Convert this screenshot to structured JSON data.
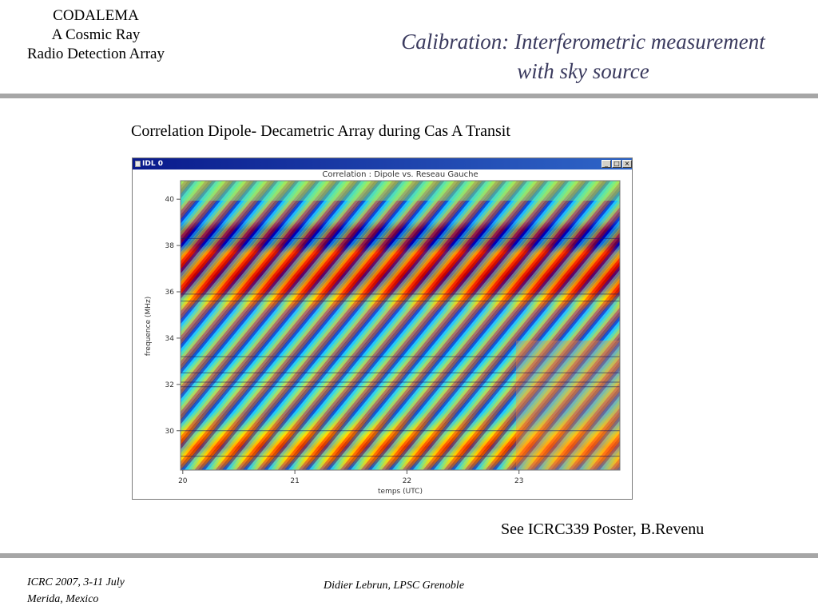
{
  "header": {
    "org_lines": [
      "CODALEMA",
      "A Cosmic Ray",
      "Radio Detection Array"
    ],
    "title_lines": [
      "Calibration: Interferometric measurement",
      "with sky source"
    ]
  },
  "subtitle": "Correlation Dipole- Decametric  Array during Cas A Transit",
  "window": {
    "title": "IDL 0",
    "buttons": {
      "minimize": "_",
      "maximize": "□",
      "close": "×"
    }
  },
  "plot": {
    "title": "Correlation : Dipole vs. Reseau Gauche",
    "ylabel": "frequence (MHz)",
    "xlabel": "temps (UTC)",
    "yticks": [
      "30",
      "32",
      "34",
      "36",
      "38",
      "40"
    ],
    "xticks": [
      "20",
      "21",
      "22",
      "23"
    ]
  },
  "chart_data": {
    "type": "heatmap",
    "title": "Correlation : Dipole vs. Reseau Gauche",
    "xlabel": "temps (UTC)",
    "ylabel": "frequence (MHz)",
    "xlim": [
      19.98,
      23.9
    ],
    "ylim": [
      28.3,
      40.8
    ],
    "xticks": [
      20,
      21,
      22,
      23
    ],
    "yticks": [
      30,
      32,
      34,
      36,
      38,
      40
    ],
    "colormap": [
      "#0000b4",
      "#1fc8ff",
      "#7ff07f",
      "#ffdd00",
      "#ff3300",
      "#b40000"
    ]
  },
  "footer": {
    "reference": "See  ICRC339 Poster, B.Revenu",
    "conference_lines": [
      "ICRC 2007, 3-11 July",
      "Merida, Mexico"
    ],
    "author": "Didier Lebrun, LPSC Grenoble"
  }
}
